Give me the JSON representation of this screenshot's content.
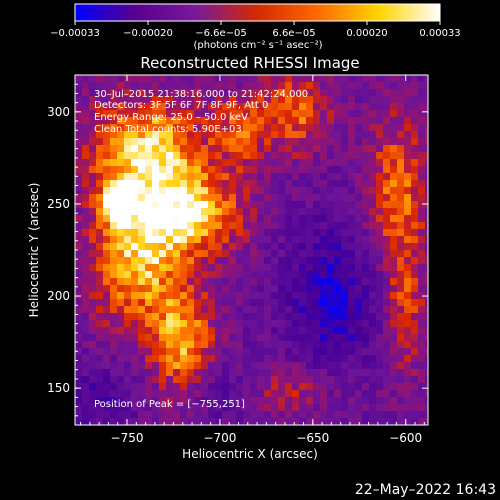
{
  "chart_data": {
    "type": "heatmap",
    "title": "Reconstructed RHESSI Image",
    "xlabel": "Heliocentric X (arcsec)",
    "ylabel": "Heliocentric Y (arcsec)",
    "xlim": [
      -778,
      -588
    ],
    "ylim": [
      130,
      320
    ],
    "x_ticks": [
      -750,
      -700,
      -650,
      -600
    ],
    "x_tick_labels": [
      "−750",
      "−700",
      "−650",
      "−600"
    ],
    "y_ticks": [
      150,
      200,
      250,
      300
    ],
    "y_tick_labels": [
      "150",
      "200",
      "250",
      "300"
    ],
    "colorbar": {
      "range": [
        -0.00033,
        0.00033
      ],
      "tick_labels": [
        "−0.00033",
        "−0.00020",
        "−6.6e−05",
        "6.6e−05",
        "0.00020",
        "0.00033"
      ],
      "unit_label": "(photons cm⁻² s⁻¹ asec⁻²)",
      "colors": [
        "#0000ff",
        "#5a0090",
        "#7a1a9a",
        "#d42a00",
        "#ff6a00",
        "#ffd400",
        "#ffffff"
      ]
    },
    "annotations": [
      "30–Jul–2015 21:38:16.000 to 21:42:24.000",
      "Detectors: 3F 5F 6F 7F 8F 9F, Att 0",
      "Energy Range: 25.0 – 50.0 keV",
      "Clean     Total counts: 5.90E+03"
    ],
    "peak_label": "Position of Peak = [−755,251]",
    "peak": {
      "x": -755,
      "y": 251
    },
    "intensity_blobs": [
      {
        "x": -740,
        "y": 280,
        "sx": 22,
        "sy": 20,
        "amp": 0.82
      },
      {
        "x": -745,
        "y": 220,
        "sx": 18,
        "sy": 26,
        "amp": 0.75
      },
      {
        "x": -715,
        "y": 245,
        "sx": 20,
        "sy": 16,
        "amp": 0.78
      },
      {
        "x": -720,
        "y": 175,
        "sx": 12,
        "sy": 20,
        "amp": 0.7
      },
      {
        "x": -755,
        "y": 251,
        "sx": 6,
        "sy": 6,
        "amp": 0.95
      },
      {
        "x": -660,
        "y": 300,
        "sx": 14,
        "sy": 16,
        "amp": 0.55
      },
      {
        "x": -605,
        "y": 255,
        "sx": 12,
        "sy": 30,
        "amp": 0.58
      },
      {
        "x": -600,
        "y": 190,
        "sx": 8,
        "sy": 25,
        "amp": 0.42
      },
      {
        "x": -690,
        "y": 290,
        "sx": 10,
        "sy": 14,
        "amp": 0.45
      },
      {
        "x": -660,
        "y": 150,
        "sx": 18,
        "sy": 10,
        "amp": 0.32
      }
    ],
    "cold_blobs": [
      {
        "x": -640,
        "y": 200,
        "sx": 18,
        "sy": 30,
        "amp": 0.45
      },
      {
        "x": -765,
        "y": 145,
        "sx": 14,
        "sy": 12,
        "amp": 0.3
      },
      {
        "x": -700,
        "y": 150,
        "sx": 12,
        "sy": 12,
        "amp": 0.22
      }
    ]
  },
  "footer": {
    "datestamp": "22–May–2022 16:43"
  }
}
